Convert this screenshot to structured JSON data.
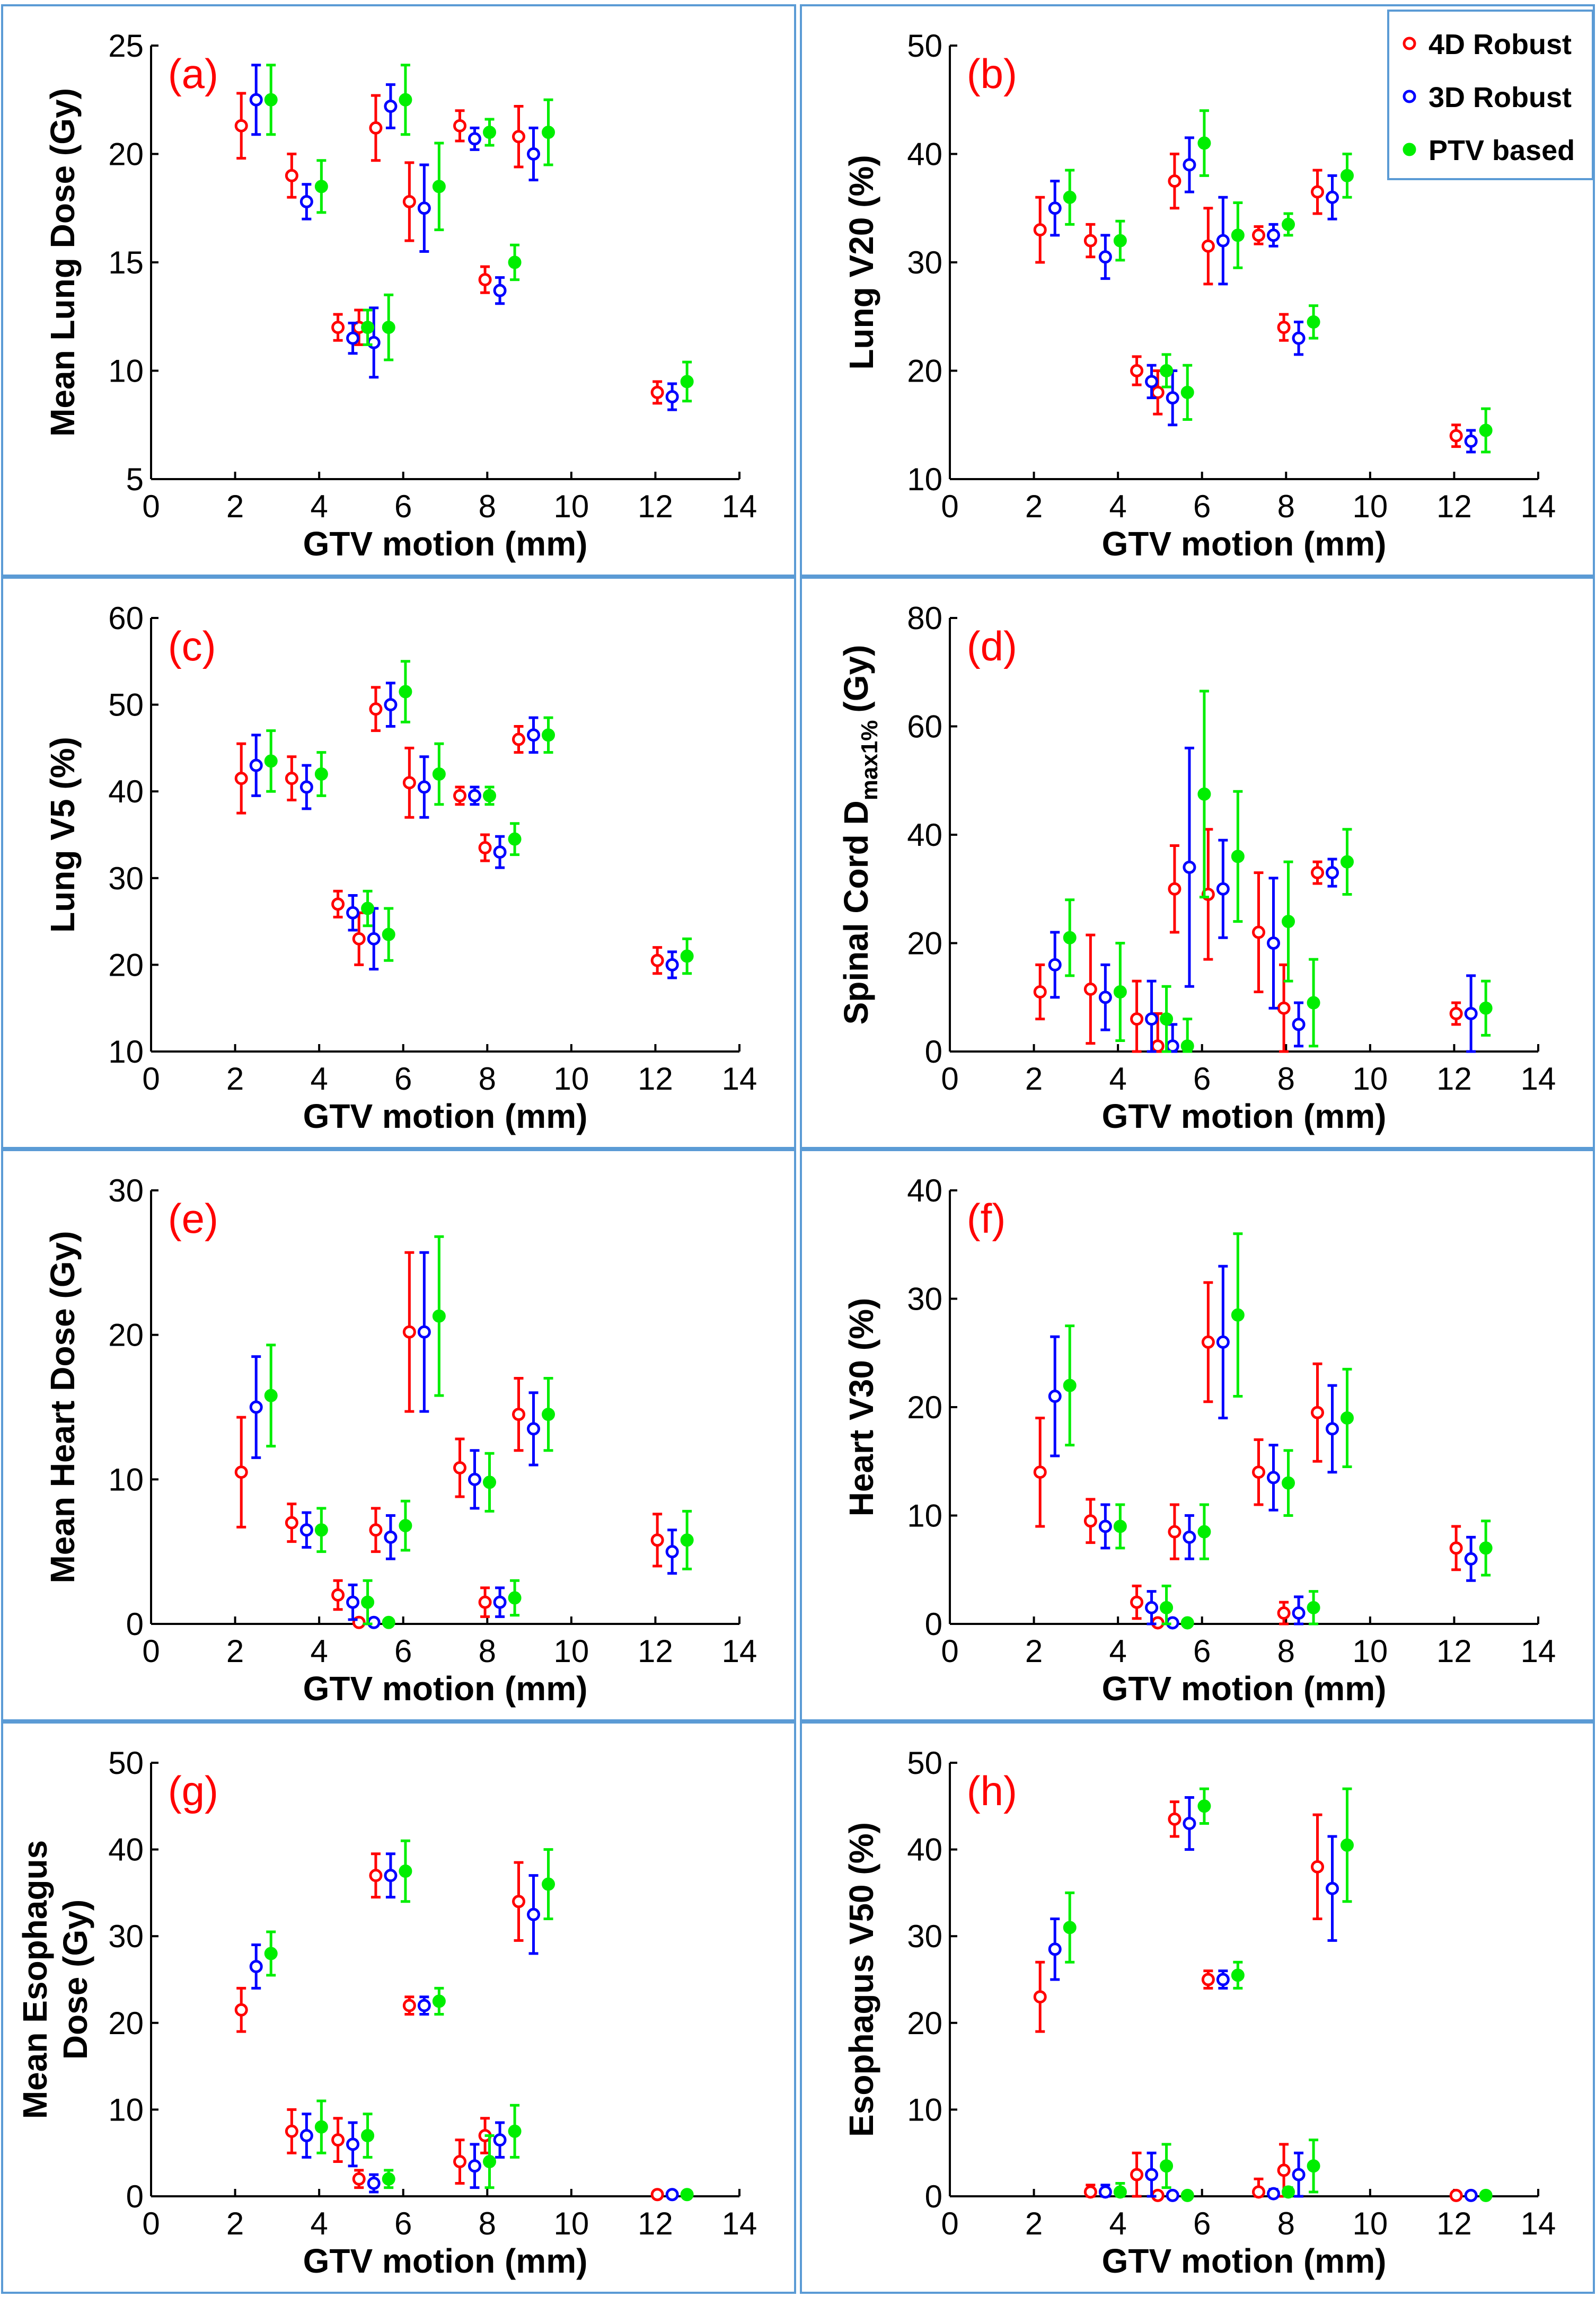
{
  "figure": {
    "legend": {
      "entries": [
        "4D Robust",
        "3D Robust",
        "PTV based"
      ],
      "colors": [
        "#ff0000",
        "#0000ff",
        "#00ee00"
      ]
    },
    "frame_color": "#5b9bd5",
    "tag_color": "#ff0000"
  },
  "chart_data": [
    {
      "type": "scatter",
      "subtype": "errorbar",
      "tag": "(a)",
      "xlabel": "GTV motion (mm)",
      "ylabel": "Mean Lung Dose (Gy)",
      "xlim": [
        0,
        14
      ],
      "ylim": [
        5,
        25
      ],
      "xticks": [
        0,
        2,
        4,
        6,
        8,
        10,
        12,
        14
      ],
      "yticks": [
        5,
        10,
        15,
        20,
        25
      ],
      "x": [
        2.5,
        3.7,
        4.8,
        5.3,
        5.7,
        6.5,
        7.7,
        8.3,
        9.1,
        12.4
      ],
      "series": [
        {
          "name": "4D Robust",
          "y": [
            21.3,
            19.0,
            12.0,
            12.0,
            21.2,
            17.8,
            21.3,
            14.2,
            20.8,
            9.0
          ],
          "err": [
            1.5,
            1.0,
            0.6,
            0.8,
            1.5,
            1.8,
            0.7,
            0.6,
            1.4,
            0.5
          ]
        },
        {
          "name": "3D Robust",
          "y": [
            22.5,
            17.8,
            11.5,
            11.3,
            22.2,
            17.5,
            20.7,
            13.7,
            20.0,
            8.8
          ],
          "err": [
            1.6,
            0.8,
            0.7,
            1.6,
            1.0,
            2.0,
            0.5,
            0.6,
            1.2,
            0.6
          ]
        },
        {
          "name": "PTV based",
          "y": [
            22.5,
            18.5,
            12.0,
            12.0,
            22.5,
            18.5,
            21.0,
            15.0,
            21.0,
            9.5
          ],
          "err": [
            1.6,
            1.2,
            0.8,
            1.5,
            1.6,
            2.0,
            0.6,
            0.8,
            1.5,
            0.9
          ]
        }
      ]
    },
    {
      "type": "scatter",
      "subtype": "errorbar",
      "tag": "(b)",
      "xlabel": "GTV motion (mm)",
      "ylabel": "Lung V20 (%)",
      "xlim": [
        0,
        14
      ],
      "ylim": [
        10,
        50
      ],
      "xticks": [
        0,
        2,
        4,
        6,
        8,
        10,
        12,
        14
      ],
      "yticks": [
        10,
        20,
        30,
        40,
        50
      ],
      "legend": {
        "entries": [
          "4D Robust",
          "3D Robust",
          "PTV based"
        ],
        "position": "top-right"
      },
      "x": [
        2.5,
        3.7,
        4.8,
        5.3,
        5.7,
        6.5,
        7.7,
        8.3,
        9.1,
        12.4
      ],
      "series": [
        {
          "name": "4D Robust",
          "y": [
            33.0,
            32.0,
            20.0,
            18.0,
            37.5,
            31.5,
            32.5,
            24.0,
            36.5,
            14.0
          ],
          "err": [
            3.0,
            1.5,
            1.3,
            2.0,
            2.5,
            3.5,
            0.8,
            1.2,
            2.0,
            1.0
          ]
        },
        {
          "name": "3D Robust",
          "y": [
            35.0,
            30.5,
            19.0,
            17.5,
            39.0,
            32.0,
            32.5,
            23.0,
            36.0,
            13.5
          ],
          "err": [
            2.5,
            2.0,
            1.5,
            2.5,
            2.5,
            4.0,
            1.0,
            1.5,
            2.0,
            1.0
          ]
        },
        {
          "name": "PTV based",
          "y": [
            36.0,
            32.0,
            20.0,
            18.0,
            41.0,
            32.5,
            33.5,
            24.5,
            38.0,
            14.5
          ],
          "err": [
            2.5,
            1.8,
            1.5,
            2.5,
            3.0,
            3.0,
            1.0,
            1.5,
            2.0,
            2.0
          ]
        }
      ]
    },
    {
      "type": "scatter",
      "subtype": "errorbar",
      "tag": "(c)",
      "xlabel": "GTV motion (mm)",
      "ylabel": "Lung V5 (%)",
      "xlim": [
        0,
        14
      ],
      "ylim": [
        10,
        60
      ],
      "xticks": [
        0,
        2,
        4,
        6,
        8,
        10,
        12,
        14
      ],
      "yticks": [
        10,
        20,
        30,
        40,
        50,
        60
      ],
      "x": [
        2.5,
        3.7,
        4.8,
        5.3,
        5.7,
        6.5,
        7.7,
        8.3,
        9.1,
        12.4
      ],
      "series": [
        {
          "name": "4D Robust",
          "y": [
            41.5,
            41.5,
            27.0,
            23.0,
            49.5,
            41.0,
            39.5,
            33.5,
            46.0,
            20.5
          ],
          "err": [
            4.0,
            2.5,
            1.5,
            3.0,
            2.5,
            4.0,
            1.0,
            1.5,
            1.5,
            1.5
          ]
        },
        {
          "name": "3D Robust",
          "y": [
            43.0,
            40.5,
            26.0,
            23.0,
            50.0,
            40.5,
            39.5,
            33.0,
            46.5,
            20.0
          ],
          "err": [
            3.5,
            2.5,
            2.0,
            3.5,
            2.5,
            3.5,
            1.0,
            1.8,
            2.0,
            1.5
          ]
        },
        {
          "name": "PTV based",
          "y": [
            43.5,
            42.0,
            26.5,
            23.5,
            51.5,
            42.0,
            39.5,
            34.5,
            46.5,
            21.0
          ],
          "err": [
            3.5,
            2.5,
            2.0,
            3.0,
            3.5,
            3.5,
            1.0,
            1.8,
            2.0,
            2.0
          ]
        }
      ]
    },
    {
      "type": "scatter",
      "subtype": "errorbar",
      "tag": "(d)",
      "xlabel": "GTV motion (mm)",
      "ylabel": "Spinal Cord D",
      "ylabel_sub": "max1%",
      "ylabel_suffix": "(Gy)",
      "xlim": [
        0,
        14
      ],
      "ylim": [
        0,
        80
      ],
      "xticks": [
        0,
        2,
        4,
        6,
        8,
        10,
        12,
        14
      ],
      "yticks": [
        0,
        20,
        40,
        60,
        80
      ],
      "x": [
        2.5,
        3.7,
        4.8,
        5.3,
        5.7,
        6.5,
        7.7,
        8.3,
        9.1,
        12.4
      ],
      "series": [
        {
          "name": "4D Robust",
          "y": [
            11.0,
            11.5,
            6.0,
            1.0,
            30.0,
            29.0,
            22.0,
            8.0,
            33.0,
            7.0
          ],
          "err": [
            5.0,
            10.0,
            7.0,
            6.0,
            8.0,
            12.0,
            11.0,
            8.0,
            2.0,
            2.0
          ]
        },
        {
          "name": "3D Robust",
          "y": [
            16.0,
            10.0,
            6.0,
            1.0,
            34.0,
            30.0,
            20.0,
            5.0,
            33.0,
            7.0
          ],
          "err": [
            6.0,
            6.0,
            7.0,
            4.0,
            22.0,
            9.0,
            12.0,
            4.0,
            2.5,
            7.0
          ]
        },
        {
          "name": "PTV based",
          "y": [
            21.0,
            11.0,
            6.0,
            1.0,
            47.5,
            36.0,
            24.0,
            9.0,
            35.0,
            8.0
          ],
          "err": [
            7.0,
            9.0,
            6.0,
            5.0,
            19.0,
            12.0,
            11.0,
            8.0,
            6.0,
            5.0
          ]
        }
      ]
    },
    {
      "type": "scatter",
      "subtype": "errorbar",
      "tag": "(e)",
      "xlabel": "GTV motion (mm)",
      "ylabel": "Mean Heart Dose (Gy)",
      "xlim": [
        0,
        14
      ],
      "ylim": [
        0,
        30
      ],
      "xticks": [
        0,
        2,
        4,
        6,
        8,
        10,
        12,
        14
      ],
      "yticks": [
        0,
        10,
        20,
        30
      ],
      "x": [
        2.5,
        3.7,
        4.8,
        5.3,
        5.7,
        6.5,
        7.7,
        8.3,
        9.1,
        12.4
      ],
      "series": [
        {
          "name": "4D Robust",
          "y": [
            10.5,
            7.0,
            2.0,
            0.1,
            6.5,
            20.2,
            10.8,
            1.5,
            14.5,
            5.8
          ],
          "err": [
            3.8,
            1.3,
            1.0,
            0.1,
            1.5,
            5.5,
            2.0,
            1.0,
            2.5,
            1.8
          ]
        },
        {
          "name": "3D Robust",
          "y": [
            15.0,
            6.5,
            1.5,
            0.1,
            6.0,
            20.2,
            10.0,
            1.5,
            13.5,
            5.0
          ],
          "err": [
            3.5,
            1.2,
            1.2,
            0.1,
            1.5,
            5.5,
            2.0,
            1.0,
            2.5,
            1.5
          ]
        },
        {
          "name": "PTV based",
          "y": [
            15.8,
            6.5,
            1.5,
            0.1,
            6.8,
            21.3,
            9.8,
            1.8,
            14.5,
            5.8
          ],
          "err": [
            3.5,
            1.5,
            1.5,
            0.1,
            1.7,
            5.5,
            2.0,
            1.2,
            2.5,
            2.0
          ]
        }
      ]
    },
    {
      "type": "scatter",
      "subtype": "errorbar",
      "tag": "(f)",
      "xlabel": "GTV motion (mm)",
      "ylabel": "Heart V30 (%)",
      "xlim": [
        0,
        14
      ],
      "ylim": [
        0,
        40
      ],
      "xticks": [
        0,
        2,
        4,
        6,
        8,
        10,
        12,
        14
      ],
      "yticks": [
        0,
        10,
        20,
        30,
        40
      ],
      "x": [
        2.5,
        3.7,
        4.8,
        5.3,
        5.7,
        6.5,
        7.7,
        8.3,
        9.1,
        12.4
      ],
      "series": [
        {
          "name": "4D Robust",
          "y": [
            14.0,
            9.5,
            2.0,
            0.1,
            8.5,
            26.0,
            14.0,
            1.0,
            19.5,
            7.0
          ],
          "err": [
            5.0,
            2.0,
            1.5,
            0.1,
            2.5,
            5.5,
            3.0,
            1.0,
            4.5,
            2.0
          ]
        },
        {
          "name": "3D Robust",
          "y": [
            21.0,
            9.0,
            1.5,
            0.1,
            8.0,
            26.0,
            13.5,
            1.0,
            18.0,
            6.0
          ],
          "err": [
            5.5,
            2.0,
            1.5,
            0.1,
            2.0,
            7.0,
            3.0,
            1.5,
            4.0,
            2.0
          ]
        },
        {
          "name": "PTV based",
          "y": [
            22.0,
            9.0,
            1.5,
            0.1,
            8.5,
            28.5,
            13.0,
            1.5,
            19.0,
            7.0
          ],
          "err": [
            5.5,
            2.0,
            2.0,
            0.1,
            2.5,
            7.5,
            3.0,
            1.5,
            4.5,
            2.5
          ]
        }
      ]
    },
    {
      "type": "scatter",
      "subtype": "errorbar",
      "tag": "(g)",
      "xlabel": "GTV motion (mm)",
      "ylabel": "Mean Esophagus",
      "ylabel_line2": "Dose (Gy)",
      "xlim": [
        0,
        14
      ],
      "ylim": [
        0,
        50
      ],
      "xticks": [
        0,
        2,
        4,
        6,
        8,
        10,
        12,
        14
      ],
      "yticks": [
        0,
        10,
        20,
        30,
        40,
        50
      ],
      "x": [
        2.5,
        3.7,
        4.8,
        5.3,
        5.7,
        6.5,
        7.7,
        8.3,
        9.1,
        12.4
      ],
      "series": [
        {
          "name": "4D Robust",
          "y": [
            21.5,
            7.5,
            6.5,
            2.0,
            37.0,
            22.0,
            4.0,
            7.0,
            34.0,
            0.2
          ],
          "err": [
            2.5,
            2.5,
            2.5,
            1.0,
            2.5,
            1.0,
            2.5,
            2.0,
            4.5,
            0.2
          ]
        },
        {
          "name": "3D Robust",
          "y": [
            26.5,
            7.0,
            6.0,
            1.5,
            37.0,
            22.0,
            3.5,
            6.5,
            32.5,
            0.2
          ],
          "err": [
            2.5,
            2.5,
            2.5,
            1.0,
            2.5,
            1.0,
            2.5,
            2.0,
            4.5,
            0.2
          ]
        },
        {
          "name": "PTV based",
          "y": [
            28.0,
            8.0,
            7.0,
            2.0,
            37.5,
            22.5,
            4.0,
            7.5,
            36.0,
            0.2
          ],
          "err": [
            2.5,
            3.0,
            2.5,
            1.0,
            3.5,
            1.5,
            3.0,
            3.0,
            4.0,
            0.2
          ]
        }
      ]
    },
    {
      "type": "scatter",
      "subtype": "errorbar",
      "tag": "(h)",
      "xlabel": "GTV motion (mm)",
      "ylabel": "Esophagus V50 (%)",
      "xlim": [
        0,
        14
      ],
      "ylim": [
        0,
        50
      ],
      "xticks": [
        0,
        2,
        4,
        6,
        8,
        10,
        12,
        14
      ],
      "yticks": [
        0,
        10,
        20,
        30,
        40,
        50
      ],
      "x": [
        2.5,
        3.7,
        4.8,
        5.3,
        5.7,
        6.5,
        7.7,
        8.3,
        9.1,
        12.4
      ],
      "series": [
        {
          "name": "4D Robust",
          "y": [
            23.0,
            0.5,
            2.5,
            0.1,
            43.5,
            25.0,
            0.5,
            3.0,
            38.0,
            0.1
          ],
          "err": [
            4.0,
            0.8,
            2.5,
            0.1,
            2.0,
            1.0,
            1.5,
            3.0,
            6.0,
            0.1
          ]
        },
        {
          "name": "3D Robust",
          "y": [
            28.5,
            0.5,
            2.5,
            0.1,
            43.0,
            25.0,
            0.3,
            2.5,
            35.5,
            0.1
          ],
          "err": [
            3.5,
            0.8,
            2.5,
            0.1,
            3.0,
            1.0,
            0.5,
            2.5,
            6.0,
            0.1
          ]
        },
        {
          "name": "PTV based",
          "y": [
            31.0,
            0.5,
            3.5,
            0.1,
            45.0,
            25.5,
            0.5,
            3.5,
            40.5,
            0.1
          ],
          "err": [
            4.0,
            1.0,
            2.5,
            0.1,
            2.0,
            1.5,
            0.5,
            3.0,
            6.5,
            0.1
          ]
        }
      ]
    }
  ]
}
